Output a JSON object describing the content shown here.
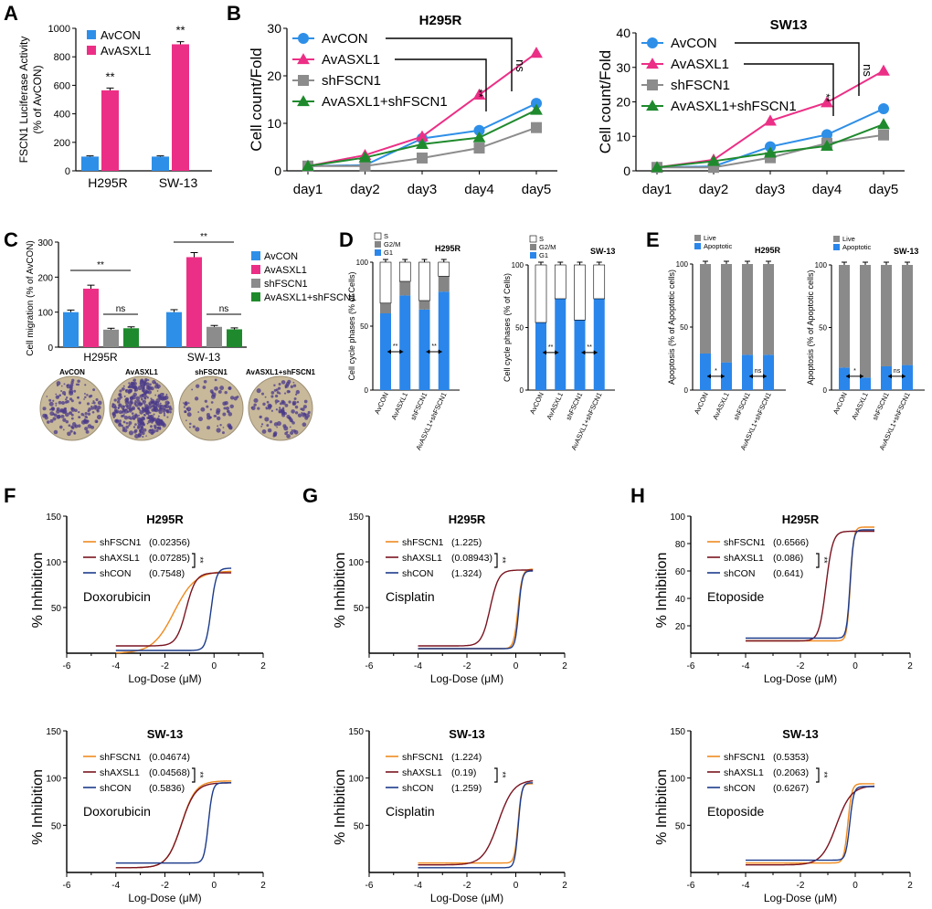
{
  "colors": {
    "avcon": "#2e8fe8",
    "avasxl1": "#ec2f86",
    "shfscn1": "#8c8c8c",
    "combo": "#1f8a2d",
    "g1": "#2a86ea",
    "g2m": "#858585",
    "s": "#ffffff",
    "live": "#8a8a8a",
    "apoptotic": "#2a86ea",
    "curve_shfscn1": "#ef8a1f",
    "curve_shaxsl1": "#7a1420",
    "curve_shcon": "#1b3a8a",
    "photo_label_avcon": "#2a52be",
    "photo_label_avasxl1": "#c0272d",
    "photo_label_shfscn1": "#4a4a4a",
    "photo_label_combo": "#2e7d32",
    "stain": "#4a3a8a",
    "membrane": "#c8b99a"
  },
  "panel_labels": {
    "A": "A",
    "B": "B",
    "C": "C",
    "D": "D",
    "E": "E",
    "F": "F",
    "G": "G",
    "H": "H"
  },
  "photos": {
    "labels": [
      "AvCON",
      "AvASXL1",
      "shFSCN1",
      "AvASXL1+shFSCN1"
    ]
  },
  "chart_data": [
    {
      "id": "A",
      "type": "bar",
      "ylabel": "FSCN1 Luciferase Activity (% of AvCON)",
      "ylabel_lines": [
        "FSCN1 Luciferase Activity",
        "(% of AvCON)"
      ],
      "ylim": [
        0,
        1000
      ],
      "yticks": [
        0,
        200,
        400,
        600,
        800,
        1000
      ],
      "categories": [
        "H295R",
        "SW-13"
      ],
      "series": [
        {
          "name": "AvCON",
          "values": [
            100,
            100
          ],
          "errors": [
            5,
            5
          ]
        },
        {
          "name": "AvASXL1",
          "values": [
            565,
            888
          ],
          "errors": [
            16,
            18
          ]
        }
      ],
      "annotations": [
        "**",
        "**"
      ]
    },
    {
      "id": "B1",
      "type": "line",
      "title": "H295R",
      "ylabel": "Cell count/Fold",
      "ylim": [
        0,
        30
      ],
      "yticks": [
        0,
        10,
        20,
        30
      ],
      "categories": [
        "day1",
        "day2",
        "day3",
        "day4",
        "day5"
      ],
      "series": [
        {
          "name": "AvCON",
          "marker": "circle",
          "values": [
            1.0,
            1.2,
            6.8,
            8.5,
            14.2
          ]
        },
        {
          "name": "AvASXL1",
          "marker": "triangle-up",
          "values": [
            1.0,
            3.3,
            7.2,
            16.0,
            24.8
          ]
        },
        {
          "name": "shFSCN1",
          "marker": "square",
          "values": [
            1.0,
            1.0,
            2.7,
            4.8,
            9.1
          ]
        },
        {
          "name": "AvASXL1+shFSCN1",
          "marker": "triangle-up",
          "values": [
            1.0,
            2.8,
            5.6,
            7.0,
            12.8
          ]
        }
      ],
      "sig": {
        "label_top": "ns",
        "label_bottom": "**"
      }
    },
    {
      "id": "B2",
      "type": "line",
      "title": "SW13",
      "ylabel": "Cell count/Fold",
      "ylim": [
        0,
        40
      ],
      "yticks": [
        0,
        10,
        20,
        30,
        40
      ],
      "categories": [
        "day1",
        "day2",
        "day3",
        "day4",
        "day5"
      ],
      "series": [
        {
          "name": "AvCON",
          "marker": "circle",
          "values": [
            1.0,
            1.3,
            7.0,
            10.5,
            18.0
          ]
        },
        {
          "name": "AvASXL1",
          "marker": "triangle-up",
          "values": [
            1.0,
            3.2,
            14.5,
            19.8,
            29.0
          ]
        },
        {
          "name": "shFSCN1",
          "marker": "square",
          "values": [
            1.0,
            1.0,
            3.8,
            8.0,
            10.4
          ]
        },
        {
          "name": "AvASXL1+shFSCN1",
          "marker": "triangle-up",
          "values": [
            1.0,
            2.8,
            5.2,
            7.2,
            13.5
          ]
        }
      ],
      "sig": {
        "label_top": "ns",
        "label_bottom": "**"
      }
    },
    {
      "id": "C",
      "type": "bar",
      "ylabel": "Cell migration (% of AvCON)",
      "ylim": [
        0,
        300
      ],
      "yticks": [
        0,
        100,
        200,
        300
      ],
      "categories": [
        "H295R",
        "SW-13"
      ],
      "series": [
        {
          "name": "AvCON",
          "values": [
            100,
            100
          ],
          "errors": [
            6,
            7
          ]
        },
        {
          "name": "AvASXL1",
          "values": [
            167,
            257
          ],
          "errors": [
            10,
            13
          ]
        },
        {
          "name": "shFSCN1",
          "values": [
            50,
            58
          ],
          "errors": [
            4,
            4
          ]
        },
        {
          "name": "AvASXL1+shFSCN1",
          "values": [
            54,
            51
          ],
          "errors": [
            4,
            4
          ]
        }
      ],
      "sig": [
        {
          "group": 0,
          "text": "**"
        },
        {
          "group": 0,
          "text": "ns"
        },
        {
          "group": 1,
          "text": "**"
        },
        {
          "group": 1,
          "text": "ns"
        }
      ]
    },
    {
      "id": "D1",
      "type": "stacked-bar",
      "title": "H295R",
      "ylabel": "Cell cycle phases (% of Cells)",
      "ylim": [
        0,
        100
      ],
      "yticks": [
        0,
        50,
        100
      ],
      "categories": [
        "AvCON",
        "AvASXL1",
        "shFSCN1",
        "AvASXL1+shFSCN1"
      ],
      "series": [
        {
          "name": "G1",
          "values": [
            60,
            74,
            63,
            77
          ]
        },
        {
          "name": "G2/M",
          "values": [
            8,
            11,
            7,
            12
          ]
        },
        {
          "name": "S",
          "values": [
            32,
            15,
            30,
            11
          ]
        }
      ],
      "legend": [
        "S",
        "G2/M",
        "G1"
      ],
      "sig": [
        "**",
        "**"
      ]
    },
    {
      "id": "D2",
      "type": "stacked-bar",
      "title": "SW-13",
      "ylabel": "Cell cycle phases (% of Cells)",
      "ylim": [
        0,
        100
      ],
      "yticks": [
        0,
        50,
        100
      ],
      "categories": [
        "AvCON",
        "AvASXL1",
        "shFSCN1",
        "AvASXL1+shFSCN1"
      ],
      "series": [
        {
          "name": "G1",
          "values": [
            54,
            73,
            56,
            73
          ]
        },
        {
          "name": "G2/M",
          "values": [
            0,
            0,
            0,
            0
          ]
        },
        {
          "name": "S",
          "values": [
            46,
            27,
            44,
            27
          ]
        }
      ],
      "legend": [
        "S",
        "G2/M",
        "G1"
      ],
      "sig": [
        "**",
        "**"
      ]
    },
    {
      "id": "E1",
      "type": "stacked-bar",
      "title": "H295R",
      "ylabel": "Apoptosis (% of Apoptotic cells)",
      "ylim": [
        0,
        100
      ],
      "yticks": [
        0,
        50,
        100
      ],
      "categories": [
        "AvCON",
        "AvASXL1",
        "shFSCN1",
        "AvASXL1+shFSCN1"
      ],
      "series": [
        {
          "name": "Apoptotic",
          "values": [
            29,
            22,
            28,
            28
          ]
        },
        {
          "name": "Live",
          "values": [
            71,
            78,
            72,
            72
          ]
        }
      ],
      "legend": [
        "Live",
        "Apoptotic"
      ],
      "sig": [
        "*",
        "ns"
      ]
    },
    {
      "id": "E2",
      "type": "stacked-bar",
      "title": "SW-13",
      "ylabel": "Apoptosis (% of Apoptotic cells)",
      "ylim": [
        0,
        100
      ],
      "yticks": [
        0,
        50,
        100
      ],
      "categories": [
        "AvCON",
        "AvASXL1",
        "shFSCN1",
        "AvASXL1+shFSCN1"
      ],
      "series": [
        {
          "name": "Apoptotic",
          "values": [
            18,
            10,
            19,
            20
          ]
        },
        {
          "name": "Live",
          "values": [
            82,
            90,
            81,
            80
          ]
        }
      ],
      "legend": [
        "Live",
        "Apoptotic"
      ],
      "sig": [
        "*",
        "ns"
      ]
    },
    {
      "id": "F1",
      "type": "line",
      "title": "H295R",
      "drug": "Doxorubicin",
      "xlabel": "Log-Dose (μM)",
      "ylabel": "% Inhibition",
      "xlim": [
        -6,
        2
      ],
      "xticks": [
        -6,
        -4,
        -2,
        0,
        2
      ],
      "ylim": [
        0,
        150
      ],
      "yticks": [
        50,
        100,
        150
      ],
      "series": [
        {
          "name": "shFSCN1",
          "ic50": "(0.02356)",
          "log_ic50": -1.63,
          "bottom": 0,
          "top": 90,
          "hill": 1.0
        },
        {
          "name": "shAXSL1",
          "ic50": "(0.07285)",
          "log_ic50": -1.14,
          "bottom": 8,
          "top": 88,
          "hill": 2.2
        },
        {
          "name": "shCON",
          "ic50": "(0.7548)",
          "log_ic50": -0.12,
          "bottom": 3,
          "top": 93,
          "hill": 4.0
        }
      ],
      "sig": "**"
    },
    {
      "id": "F2",
      "type": "line",
      "title": "SW-13",
      "drug": "Doxorubicin",
      "xlabel": "Log-Dose (μM)",
      "ylabel": "% Inhibition",
      "xlim": [
        -6,
        2
      ],
      "xticks": [
        -6,
        -4,
        -2,
        0,
        2
      ],
      "ylim": [
        0,
        150
      ],
      "yticks": [
        50,
        100,
        150
      ],
      "series": [
        {
          "name": "shFSCN1",
          "ic50": "(0.04674)",
          "log_ic50": -1.33,
          "bottom": 5,
          "top": 97,
          "hill": 1.5
        },
        {
          "name": "shAXSL1",
          "ic50": "(0.04568)",
          "log_ic50": -1.34,
          "bottom": 5,
          "top": 95,
          "hill": 1.5
        },
        {
          "name": "shCON",
          "ic50": "(0.5836)",
          "log_ic50": -0.23,
          "bottom": 10,
          "top": 95,
          "hill": 5.0
        }
      ],
      "sig": "**"
    },
    {
      "id": "G1",
      "type": "line",
      "title": "H295R",
      "drug": "Cisplatin",
      "xlabel": "Log-Dose (μM)",
      "ylabel": "% Inhibition",
      "xlim": [
        -6,
        2
      ],
      "xticks": [
        -6,
        -4,
        -2,
        0,
        2
      ],
      "ylim": [
        0,
        150
      ],
      "yticks": [
        50,
        100,
        150
      ],
      "series": [
        {
          "name": "shFSCN1",
          "ic50": "(1.225)",
          "log_ic50": 0.09,
          "bottom": 5,
          "top": 92,
          "hill": 5.0
        },
        {
          "name": "shAXSL1",
          "ic50": "(0.08943)",
          "log_ic50": -1.05,
          "bottom": 8,
          "top": 91,
          "hill": 2.5
        },
        {
          "name": "shCON",
          "ic50": "(1.324)",
          "log_ic50": 0.12,
          "bottom": 5,
          "top": 90,
          "hill": 6.0
        }
      ],
      "sig": "**"
    },
    {
      "id": "G2",
      "type": "line",
      "title": "SW-13",
      "drug": "Cisplatin",
      "xlabel": "Log-Dose (μM)",
      "ylabel": "% Inhibition",
      "xlim": [
        -6,
        2
      ],
      "xticks": [
        -6,
        -4,
        -2,
        0,
        2
      ],
      "ylim": [
        0,
        150
      ],
      "yticks": [
        50,
        100,
        150
      ],
      "series": [
        {
          "name": "shFSCN1",
          "ic50": "(1.224)",
          "log_ic50": 0.09,
          "bottom": 10,
          "top": 94,
          "hill": 6.0
        },
        {
          "name": "shAXSL1",
          "ic50": "(0.19)",
          "log_ic50": -0.72,
          "bottom": 8,
          "top": 98,
          "hill": 1.4
        },
        {
          "name": "shCON",
          "ic50": "(1.259)",
          "log_ic50": 0.1,
          "bottom": 5,
          "top": 95,
          "hill": 6.0
        }
      ],
      "sig": "**"
    },
    {
      "id": "H1",
      "type": "line",
      "title": "H295R",
      "drug": "Etoposide",
      "xlabel": "Log-Dose (μM)",
      "ylabel": "% Inhibition",
      "xlim": [
        -6,
        2
      ],
      "xticks": [
        -6,
        -4,
        -2,
        0,
        2
      ],
      "ylim": [
        0,
        100
      ],
      "yticks": [
        20,
        40,
        60,
        80,
        100
      ],
      "series": [
        {
          "name": "shFSCN1",
          "ic50": "(0.6566)",
          "log_ic50": -0.18,
          "bottom": 9,
          "top": 92,
          "hill": 7.0
        },
        {
          "name": "shAXSL1",
          "ic50": "(0.086)",
          "log_ic50": -1.07,
          "bottom": 9,
          "top": 89,
          "hill": 3.5
        },
        {
          "name": "shCON",
          "ic50": "(0.641)",
          "log_ic50": -0.19,
          "bottom": 11,
          "top": 90,
          "hill": 7.0
        }
      ],
      "sig": "**"
    },
    {
      "id": "H2",
      "type": "line",
      "title": "SW-13",
      "drug": "Etoposide",
      "xlabel": "Log-Dose (μM)",
      "ylabel": "% Inhibition",
      "xlim": [
        -6,
        2
      ],
      "xticks": [
        -6,
        -4,
        -2,
        0,
        2
      ],
      "ylim": [
        0,
        150
      ],
      "yticks": [
        50,
        100,
        150
      ],
      "series": [
        {
          "name": "shFSCN1",
          "ic50": "(0.5353)",
          "log_ic50": -0.27,
          "bottom": 10,
          "top": 94,
          "hill": 6.0
        },
        {
          "name": "shAXSL1",
          "ic50": "(0.2063)",
          "log_ic50": -0.69,
          "bottom": 8,
          "top": 92,
          "hill": 1.6
        },
        {
          "name": "shCON",
          "ic50": "(0.6267)",
          "log_ic50": -0.2,
          "bottom": 13,
          "top": 91,
          "hill": 6.0
        }
      ],
      "sig": "**"
    }
  ]
}
